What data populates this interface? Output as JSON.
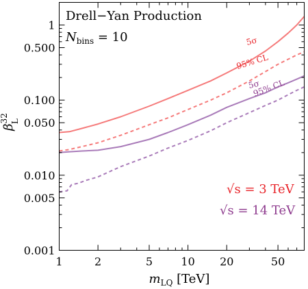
{
  "chart_data": {
    "type": "line",
    "title": "Drell−Yan Production",
    "annotation": {
      "symbol": "N",
      "subscript": "bins",
      "text": " = 10"
    },
    "xlabel": {
      "symbol": "m",
      "subscript": "LQ",
      "unit": " [TeV]"
    },
    "ylabel": {
      "symbol": "β",
      "subscript": "L",
      "superscript": "32"
    },
    "xscale": "log",
    "yscale": "log",
    "xlim": [
      1,
      80
    ],
    "ylim": [
      0.001,
      2
    ],
    "xticks": [
      1,
      2,
      5,
      10,
      20,
      50
    ],
    "xtick_labels": [
      "1",
      "2",
      "5",
      "10",
      "20",
      "50"
    ],
    "yticks": [
      0.001,
      0.005,
      0.01,
      0.05,
      0.1,
      0.5,
      1
    ],
    "ytick_labels": [
      "0.001",
      "0.005",
      "0.010",
      "0.050",
      "0.100",
      "0.500",
      "1"
    ],
    "grid": false,
    "legend": {
      "position": "bottom-right",
      "entries": [
        {
          "prefix": "√s",
          "text": " = 3 TeV",
          "color": "#e8242a"
        },
        {
          "prefix": "√s",
          "text": " = 14 TeV",
          "color": "#8e3b8e"
        }
      ]
    },
    "series": [
      {
        "label": "5σ",
        "color": "#f57a7a",
        "style": "solid",
        "x": [
          1,
          1.2,
          1.5,
          2,
          3,
          5,
          7,
          10,
          15,
          20,
          30,
          40,
          50,
          60,
          70,
          80
        ],
        "y": [
          0.037,
          0.038,
          0.042,
          0.048,
          0.06,
          0.083,
          0.105,
          0.135,
          0.18,
          0.23,
          0.33,
          0.45,
          0.6,
          0.78,
          1.0,
          1.3
        ]
      },
      {
        "label": "95% CL",
        "color": "#f57a7a",
        "style": "dashed",
        "x": [
          1,
          1.2,
          1.5,
          2,
          3,
          5,
          7,
          10,
          15,
          20,
          30,
          40,
          50,
          60,
          70,
          80
        ],
        "y": [
          0.021,
          0.022,
          0.024,
          0.027,
          0.034,
          0.047,
          0.058,
          0.075,
          0.1,
          0.125,
          0.18,
          0.24,
          0.3,
          0.35,
          0.4,
          0.44
        ]
      },
      {
        "label": "5σ",
        "color": "#a97bb9",
        "style": "solid",
        "x": [
          1,
          1.2,
          1.5,
          2,
          3,
          5,
          7,
          10,
          15,
          20,
          30,
          40,
          50,
          60,
          70,
          80
        ],
        "y": [
          0.02,
          0.0205,
          0.021,
          0.0215,
          0.024,
          0.03,
          0.037,
          0.047,
          0.063,
          0.08,
          0.105,
          0.125,
          0.15,
          0.17,
          0.19,
          0.21
        ]
      },
      {
        "label": "95% CL",
        "color": "#a97bb9",
        "style": "dashed",
        "x": [
          1,
          1.15,
          1.25,
          1.4,
          1.6,
          2,
          3,
          5,
          7,
          10,
          15,
          20,
          30,
          40,
          50,
          60,
          70,
          80
        ],
        "y": [
          0.006,
          0.0062,
          0.0075,
          0.0078,
          0.0085,
          0.0095,
          0.013,
          0.018,
          0.023,
          0.029,
          0.039,
          0.05,
          0.068,
          0.085,
          0.1,
          0.118,
          0.135,
          0.15
        ]
      }
    ]
  }
}
